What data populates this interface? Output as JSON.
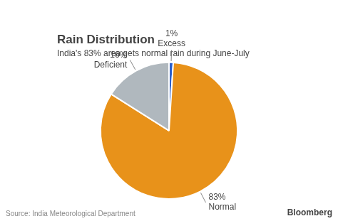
{
  "chart_data": {
    "type": "pie",
    "title": "Rain Distribution",
    "subtitle": "India's 83% area gets normal rain during June-July",
    "categories": [
      "Excess",
      "Normal",
      "Deficient"
    ],
    "values": [
      1,
      83,
      16
    ],
    "value_labels": [
      "1%",
      "83%",
      "16%"
    ],
    "colors": [
      "#2A5FCC",
      "#E8921A",
      "#B0B8BE"
    ],
    "data_labels": true,
    "annotations": [
      "Source: India Meteorological Department",
      "Bloomberg"
    ]
  }
}
